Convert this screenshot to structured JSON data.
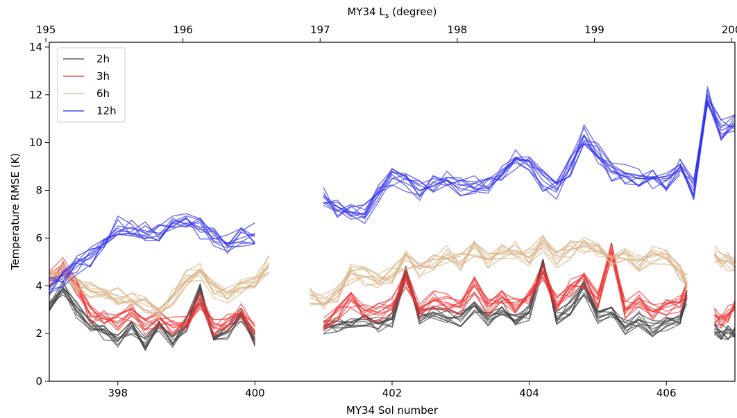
{
  "chart_data": {
    "type": "line",
    "xlabel": "MY34 Sol number",
    "ylabel": "Temperature RMSE (K)",
    "top_xlabel": "MY34 L",
    "top_xlabel_sub": "s",
    "top_xlabel_suffix": " (degree)",
    "xlim": [
      397.0,
      407.0
    ],
    "ylim": [
      0,
      14.2
    ],
    "xticks": [
      398,
      400,
      402,
      404,
      406
    ],
    "yticks": [
      0,
      2,
      4,
      6,
      8,
      10,
      12,
      14
    ],
    "top_ticks": [
      {
        "label": "195",
        "sol": 396.95
      },
      {
        "label": "196",
        "sol": 398.95
      },
      {
        "label": "197",
        "sol": 400.95
      },
      {
        "label": "198",
        "sol": 402.95
      },
      {
        "label": "199",
        "sol": 404.95
      },
      {
        "label": "200",
        "sol": 406.95
      }
    ],
    "legend_position": "top-left",
    "grid": false,
    "series": [
      {
        "name": "2h",
        "color": "#404040",
        "segments": [
          {
            "x": [
              397.0,
              397.2,
              397.4,
              397.6,
              397.8,
              398.0,
              398.2,
              398.4,
              398.6,
              398.8,
              399.0,
              399.2,
              399.4,
              399.6,
              399.8,
              400.0
            ],
            "y": [
              3.2,
              3.9,
              3.0,
              2.3,
              2.0,
              1.7,
              2.3,
              1.5,
              2.4,
              1.6,
              2.4,
              3.8,
              1.9,
              2.1,
              2.7,
              1.8
            ]
          },
          {
            "x": [
              401.0,
              401.2,
              401.4,
              401.6,
              401.8,
              402.0,
              402.2,
              402.4,
              402.6,
              402.8,
              403.0,
              403.2,
              403.4,
              403.6,
              403.8,
              404.0,
              404.2,
              404.4,
              404.6,
              404.8,
              405.0,
              405.2,
              405.4,
              405.6,
              405.8,
              406.0,
              406.2,
              406.3
            ],
            "y": [
              2.2,
              2.4,
              2.5,
              2.6,
              2.4,
              2.6,
              4.6,
              2.7,
              2.9,
              2.7,
              2.6,
              3.2,
              2.6,
              3.1,
              2.5,
              2.9,
              4.9,
              2.6,
              3.1,
              3.9,
              2.6,
              2.9,
              2.3,
              2.6,
              2.2,
              2.4,
              2.5,
              3.5
            ]
          },
          {
            "x": [
              406.7,
              406.8,
              406.9,
              407.0
            ],
            "y": [
              2.2,
              2.1,
              2.0,
              2.0
            ]
          }
        ]
      },
      {
        "name": "3h",
        "color": "#f03232",
        "segments": [
          {
            "x": [
              397.0,
              397.2,
              397.4,
              397.6,
              397.8,
              398.0,
              398.2,
              398.4,
              398.6,
              398.8,
              399.0,
              399.2,
              399.4,
              399.6,
              399.8,
              400.0
            ],
            "y": [
              4.2,
              4.8,
              3.9,
              2.8,
              2.6,
              2.5,
              2.9,
              2.3,
              2.6,
              2.3,
              2.4,
              3.3,
              2.2,
              2.5,
              2.9,
              2.1
            ]
          },
          {
            "x": [
              401.0,
              401.2,
              401.4,
              401.6,
              401.8,
              402.0,
              402.2,
              402.4,
              402.6,
              402.8,
              403.0,
              403.2,
              403.4,
              403.6,
              403.8,
              404.0,
              404.2,
              404.4,
              404.6,
              404.8,
              405.0,
              405.2,
              405.4,
              405.6,
              405.8,
              406.0,
              406.2,
              406.3
            ],
            "y": [
              2.5,
              2.9,
              3.4,
              3.0,
              2.9,
              3.2,
              4.3,
              3.0,
              3.4,
              3.3,
              3.1,
              4.0,
              3.1,
              3.5,
              3.2,
              3.6,
              4.6,
              3.3,
              3.9,
              4.3,
              3.4,
              5.5,
              3.0,
              3.5,
              2.9,
              3.1,
              3.3,
              3.8
            ]
          },
          {
            "x": [
              406.7,
              406.8,
              406.9,
              407.0
            ],
            "y": [
              2.7,
              2.6,
              2.8,
              3.0
            ]
          }
        ]
      },
      {
        "name": "6h",
        "color": "#dab285",
        "segments": [
          {
            "x": [
              397.0,
              397.2,
              397.4,
              397.6,
              397.8,
              398.0,
              398.2,
              398.4,
              398.6,
              398.8,
              399.0,
              399.2,
              399.4,
              399.6,
              399.8,
              400.0,
              400.2
            ],
            "y": [
              4.3,
              4.6,
              4.0,
              3.8,
              3.7,
              3.6,
              3.4,
              3.2,
              3.0,
              3.5,
              4.3,
              4.6,
              3.8,
              3.6,
              3.9,
              4.0,
              4.9
            ]
          },
          {
            "x": [
              400.8,
              401.0,
              401.2,
              401.4,
              401.6,
              401.8,
              402.0,
              402.2,
              402.4,
              402.6,
              402.8,
              403.0,
              403.2,
              403.4,
              403.6,
              403.8,
              404.0,
              404.2,
              404.4,
              404.6,
              404.8,
              405.0,
              405.2,
              405.4,
              405.6,
              405.8,
              406.0,
              406.2,
              406.3
            ],
            "y": [
              3.5,
              3.3,
              3.7,
              4.5,
              4.4,
              4.3,
              4.4,
              5.1,
              4.7,
              4.9,
              5.3,
              5.0,
              5.6,
              5.1,
              5.4,
              5.5,
              5.2,
              5.8,
              5.1,
              5.5,
              5.7,
              5.5,
              5.2,
              5.4,
              5.0,
              5.3,
              5.2,
              4.6,
              4.2
            ]
          },
          {
            "x": [
              406.7,
              406.8,
              406.9,
              407.0
            ],
            "y": [
              5.3,
              5.1,
              5.0,
              4.8
            ]
          }
        ]
      },
      {
        "name": "12h",
        "color": "#2f2ff0",
        "segments": [
          {
            "x": [
              397.0,
              397.2,
              397.4,
              397.6,
              397.8,
              398.0,
              398.2,
              398.4,
              398.6,
              398.8,
              399.0,
              399.2,
              399.4,
              399.6,
              399.8,
              400.0
            ],
            "y": [
              4.0,
              4.3,
              4.8,
              5.2,
              5.8,
              6.5,
              6.4,
              6.3,
              6.2,
              6.5,
              6.8,
              6.4,
              6.0,
              5.8,
              6.0,
              6.2
            ]
          },
          {
            "x": [
              401.0,
              401.2,
              401.4,
              401.6,
              401.8,
              402.0,
              402.2,
              402.4,
              402.6,
              402.8,
              403.0,
              403.2,
              403.4,
              403.6,
              403.8,
              404.0,
              404.2,
              404.4,
              404.6,
              404.8,
              405.0,
              405.2,
              405.4,
              405.6,
              405.8,
              406.0,
              406.2
            ],
            "y": [
              7.8,
              7.3,
              7.1,
              7.0,
              7.8,
              8.5,
              8.3,
              8.0,
              8.2,
              8.4,
              8.2,
              8.3,
              8.1,
              8.6,
              9.3,
              9.2,
              8.4,
              8.0,
              9.0,
              10.3,
              9.6,
              8.8,
              8.7,
              8.6,
              8.5,
              8.4,
              9.0
            ]
          },
          {
            "x": [
              406.2,
              406.4,
              406.6,
              406.8,
              407.0
            ],
            "y": [
              9.0,
              8.0,
              12.0,
              10.5,
              10.8
            ]
          }
        ]
      }
    ]
  }
}
